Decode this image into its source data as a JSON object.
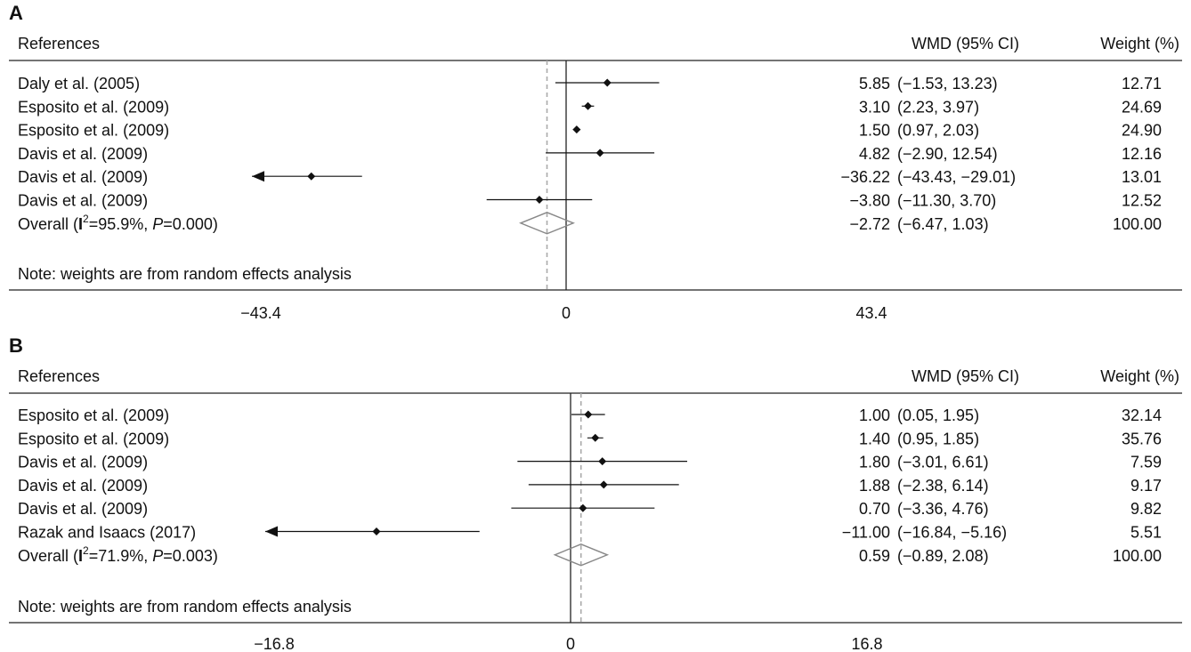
{
  "chart_data": [
    {
      "type": "forest",
      "panel_label": "A",
      "header": {
        "references": "References",
        "wmd": "WMD (95% CI)",
        "weight": "Weight (%)"
      },
      "studies": [
        {
          "name": "Daly et al. (2005)",
          "wmd": 5.85,
          "lo": -1.53,
          "hi": 13.23,
          "wmd_text": "5.85",
          "ci_text": "(−1.53, 13.23)",
          "weight": "12.71"
        },
        {
          "name": "Esposito et al. (2009)",
          "wmd": 3.1,
          "lo": 2.23,
          "hi": 3.97,
          "wmd_text": "3.10",
          "ci_text": "(2.23, 3.97)",
          "weight": "24.69"
        },
        {
          "name": "Esposito et al. (2009)",
          "wmd": 1.5,
          "lo": 0.97,
          "hi": 2.03,
          "wmd_text": "1.50",
          "ci_text": "(0.97, 2.03)",
          "weight": "24.90"
        },
        {
          "name": "Davis et al. (2009)",
          "wmd": 4.82,
          "lo": -2.9,
          "hi": 12.54,
          "wmd_text": "4.82",
          "ci_text": "(−2.90, 12.54)",
          "weight": "12.16"
        },
        {
          "name": "Davis et al. (2009)",
          "wmd": -36.22,
          "lo": -43.43,
          "hi": -29.01,
          "wmd_text": "−36.22",
          "ci_text": "(−43.43, −29.01)",
          "weight": "13.01"
        },
        {
          "name": "Davis et al. (2009)",
          "wmd": -3.8,
          "lo": -11.3,
          "hi": 3.7,
          "wmd_text": "−3.80",
          "ci_text": "(−11.30, 3.70)",
          "weight": "12.52"
        }
      ],
      "overall": {
        "label_prefix": "Overall (",
        "i2_letter": "I",
        "i2_sup": "2",
        "i2_value": "=95.9%, ",
        "p_letter": "P",
        "p_value": "=0.000)",
        "wmd": -2.72,
        "lo": -6.47,
        "hi": 1.03,
        "wmd_text": "−2.72",
        "ci_text": "(−6.47, 1.03)",
        "weight": "100.00"
      },
      "note": "Note: weights are from random effects analysis",
      "x_ticks": [
        {
          "value": -43.4,
          "label": "−43.4"
        },
        {
          "value": 0,
          "label": "0"
        },
        {
          "value": 43.4,
          "label": "43.4"
        }
      ],
      "xlim": [
        -43.4,
        43.4
      ]
    },
    {
      "type": "forest",
      "panel_label": "B",
      "header": {
        "references": "References",
        "wmd": "WMD (95% CI)",
        "weight": "Weight (%)"
      },
      "studies": [
        {
          "name": "Esposito et al. (2009)",
          "wmd": 1.0,
          "lo": 0.05,
          "hi": 1.95,
          "wmd_text": "1.00",
          "ci_text": "(0.05, 1.95)",
          "weight": "32.14"
        },
        {
          "name": "Esposito et al. (2009)",
          "wmd": 1.4,
          "lo": 0.95,
          "hi": 1.85,
          "wmd_text": "1.40",
          "ci_text": "(0.95, 1.85)",
          "weight": "35.76"
        },
        {
          "name": "Davis et al. (2009)",
          "wmd": 1.8,
          "lo": -3.01,
          "hi": 6.61,
          "wmd_text": "1.80",
          "ci_text": "(−3.01, 6.61)",
          "weight": "7.59"
        },
        {
          "name": "Davis et al. (2009)",
          "wmd": 1.88,
          "lo": -2.38,
          "hi": 6.14,
          "wmd_text": "1.88",
          "ci_text": "(−2.38, 6.14)",
          "weight": "9.17"
        },
        {
          "name": "Davis et al. (2009)",
          "wmd": 0.7,
          "lo": -3.36,
          "hi": 4.76,
          "wmd_text": "0.70",
          "ci_text": "(−3.36, 4.76)",
          "weight": "9.82"
        },
        {
          "name": "Razak and Isaacs (2017)",
          "wmd": -11.0,
          "lo": -16.84,
          "hi": -5.16,
          "wmd_text": "−11.00",
          "ci_text": "(−16.84, −5.16)",
          "weight": "5.51"
        }
      ],
      "overall": {
        "label_prefix": "Overall (",
        "i2_letter": "I",
        "i2_sup": "2",
        "i2_value": "=71.9%, ",
        "p_letter": "P",
        "p_value": "=0.003)",
        "wmd": 0.59,
        "lo": -0.89,
        "hi": 2.08,
        "wmd_text": "0.59",
        "ci_text": "(−0.89, 2.08)",
        "weight": "100.00"
      },
      "note": "Note: weights are from random effects analysis",
      "x_ticks": [
        {
          "value": -16.8,
          "label": "−16.8"
        },
        {
          "value": 0,
          "label": "0"
        },
        {
          "value": 16.8,
          "label": "16.8"
        }
      ],
      "xlim": [
        -16.8,
        16.8
      ]
    }
  ]
}
